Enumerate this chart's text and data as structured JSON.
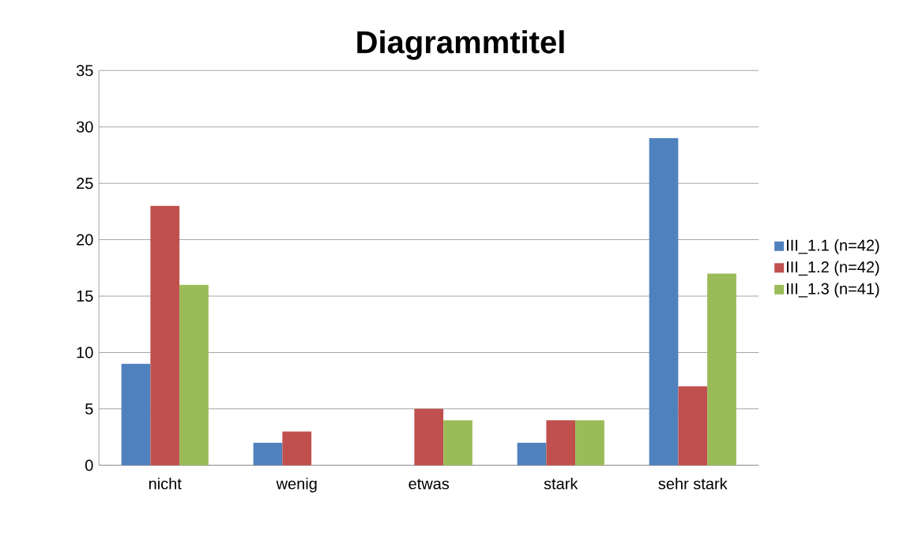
{
  "chart_data": {
    "type": "bar",
    "title": "Diagrammtitel",
    "categories": [
      "nicht",
      "wenig",
      "etwas",
      "stark",
      "sehr stark"
    ],
    "series": [
      {
        "name": "III_1.1 (n=42)",
        "color": "#4f81bd",
        "values": [
          9,
          2,
          0,
          2,
          29
        ]
      },
      {
        "name": "III_1.2 (n=42)",
        "color": "#c0504d",
        "values": [
          23,
          3,
          5,
          4,
          7
        ]
      },
      {
        "name": "III_1.3 (n=41)",
        "color": "#9bbb59",
        "values": [
          16,
          0,
          4,
          4,
          17
        ]
      }
    ],
    "ylim": [
      0,
      35
    ],
    "yticks": [
      0,
      5,
      10,
      15,
      20,
      25,
      30,
      35
    ],
    "grid": "y",
    "legend": "right"
  }
}
